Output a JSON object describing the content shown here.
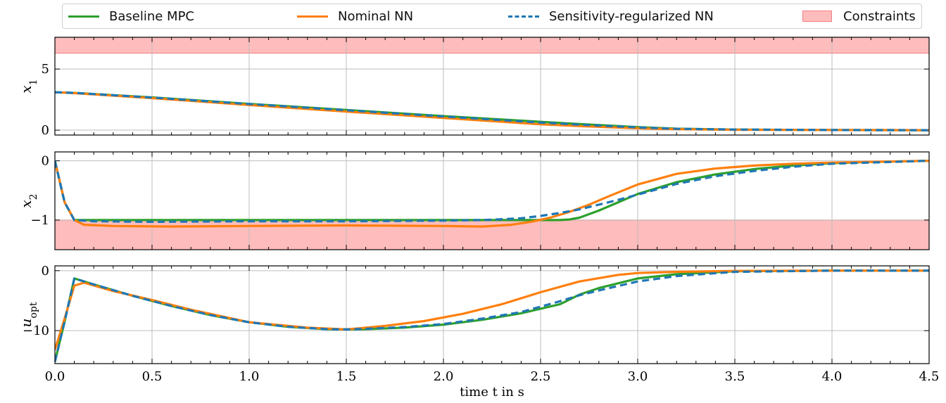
{
  "chart_data": {
    "type": "line",
    "xlabel": "time t in s",
    "xlim": [
      0.0,
      4.5
    ],
    "x_ticks": [
      "0.0",
      "0.5",
      "1.0",
      "1.5",
      "2.0",
      "2.5",
      "3.0",
      "3.5",
      "4.0",
      "4.5"
    ],
    "grid": true,
    "legend": {
      "placement": "top",
      "entries": [
        {
          "label": "Baseline MPC",
          "color": "#2ca02c",
          "style": "solid"
        },
        {
          "label": "Nominal NN",
          "color": "#ff7f0e",
          "style": "solid"
        },
        {
          "label": "Sensitivity-regularized NN",
          "color": "#1f77b4",
          "style": "dashed"
        },
        {
          "label": "Constraints",
          "color": "#ffb3b3",
          "style": "patch"
        }
      ]
    },
    "panels": [
      {
        "ylabel": "x1",
        "ylim": [
          -0.4,
          7.6
        ],
        "y_ticks": [
          0,
          5
        ],
        "constraint_band": [
          6.3,
          7.6
        ],
        "series": [
          {
            "name": "Baseline MPC",
            "x": [
              0,
              0.1,
              0.5,
              1.0,
              1.5,
              2.0,
              2.5,
              2.7,
              3.0,
              3.2,
              3.5,
              4.0,
              4.5
            ],
            "values": [
              3.1,
              3.05,
              2.68,
              2.15,
              1.65,
              1.15,
              0.68,
              0.5,
              0.25,
              0.12,
              0.05,
              0.01,
              0.0
            ]
          },
          {
            "name": "Nominal NN",
            "x": [
              0,
              0.1,
              0.5,
              1.0,
              1.5,
              2.0,
              2.5,
              2.7,
              3.0,
              3.2,
              3.5,
              4.0,
              4.5
            ],
            "values": [
              3.1,
              3.03,
              2.62,
              2.06,
              1.52,
              1.0,
              0.48,
              0.33,
              0.15,
              0.08,
              0.03,
              0.01,
              0.0
            ]
          },
          {
            "name": "Sensitivity-regularized NN",
            "x": [
              0,
              0.1,
              0.5,
              1.0,
              1.5,
              2.0,
              2.5,
              2.7,
              3.0,
              3.2,
              3.5,
              4.0,
              4.5
            ],
            "values": [
              3.1,
              3.05,
              2.67,
              2.14,
              1.63,
              1.12,
              0.62,
              0.45,
              0.22,
              0.11,
              0.05,
              0.01,
              0.0
            ]
          }
        ]
      },
      {
        "ylabel": "x2",
        "ylim": [
          -1.5,
          0.15
        ],
        "y_ticks": [
          0,
          -1
        ],
        "constraint_band": [
          -1.5,
          -1.0
        ],
        "series": [
          {
            "name": "Baseline MPC",
            "x": [
              0,
              0.05,
              0.1,
              0.2,
              0.5,
              1.0,
              1.5,
              2.0,
              2.5,
              2.6,
              2.65,
              2.7,
              2.8,
              2.9,
              3.0,
              3.2,
              3.4,
              3.6,
              3.8,
              4.0,
              4.2,
              4.5
            ],
            "values": [
              0,
              -0.7,
              -1.0,
              -1.0,
              -1.0,
              -1.0,
              -1.0,
              -1.0,
              -1.0,
              -1.0,
              -0.99,
              -0.96,
              -0.84,
              -0.7,
              -0.56,
              -0.36,
              -0.23,
              -0.14,
              -0.08,
              -0.04,
              -0.02,
              0.0
            ]
          },
          {
            "name": "Nominal NN",
            "x": [
              0,
              0.05,
              0.1,
              0.15,
              0.3,
              0.6,
              1.0,
              1.5,
              2.0,
              2.2,
              2.35,
              2.45,
              2.55,
              2.65,
              2.75,
              2.85,
              3.0,
              3.2,
              3.4,
              3.6,
              3.8,
              4.0,
              4.5
            ],
            "values": [
              0,
              -0.7,
              -1.0,
              -1.08,
              -1.1,
              -1.11,
              -1.1,
              -1.09,
              -1.1,
              -1.11,
              -1.08,
              -1.03,
              -0.96,
              -0.86,
              -0.74,
              -0.6,
              -0.4,
              -0.22,
              -0.13,
              -0.08,
              -0.05,
              -0.03,
              0.0
            ]
          },
          {
            "name": "Sensitivity-regularized NN",
            "x": [
              0,
              0.05,
              0.1,
              0.2,
              0.5,
              1.0,
              1.5,
              2.0,
              2.2,
              2.4,
              2.5,
              2.6,
              2.7,
              2.8,
              2.9,
              3.0,
              3.2,
              3.4,
              3.6,
              3.8,
              4.0,
              4.5
            ],
            "values": [
              0,
              -0.7,
              -1.0,
              -1.02,
              -1.03,
              -1.02,
              -1.02,
              -1.01,
              -1.0,
              -0.97,
              -0.93,
              -0.88,
              -0.82,
              -0.74,
              -0.66,
              -0.57,
              -0.39,
              -0.26,
              -0.17,
              -0.1,
              -0.05,
              0.0
            ]
          }
        ]
      },
      {
        "ylabel": "u_opt",
        "ylim": [
          -15.5,
          0.8
        ],
        "y_ticks": [
          0,
          -10
        ],
        "series": [
          {
            "name": "Baseline MPC",
            "x": [
              0,
              0.05,
              0.1,
              0.2,
              0.4,
              0.6,
              0.8,
              1.0,
              1.2,
              1.4,
              1.5,
              1.6,
              1.8,
              2.0,
              2.2,
              2.4,
              2.6,
              2.7,
              2.8,
              3.0,
              3.2,
              3.5,
              4.0,
              4.5
            ],
            "values": [
              -15.2,
              -8.5,
              -1.3,
              -2.3,
              -4.2,
              -5.9,
              -7.4,
              -8.6,
              -9.35,
              -9.75,
              -9.8,
              -9.75,
              -9.5,
              -9.0,
              -8.2,
              -7.1,
              -5.6,
              -4.0,
              -2.9,
              -1.3,
              -0.6,
              -0.1,
              0.0,
              0.0
            ]
          },
          {
            "name": "Nominal NN",
            "x": [
              0,
              0.05,
              0.1,
              0.15,
              0.3,
              0.5,
              0.7,
              1.0,
              1.3,
              1.5,
              1.7,
              1.9,
              2.1,
              2.3,
              2.5,
              2.7,
              2.9,
              3.0,
              3.2,
              3.5,
              4.0,
              4.5
            ],
            "values": [
              -13.2,
              -8.0,
              -2.5,
              -2.0,
              -3.4,
              -4.9,
              -6.5,
              -8.6,
              -9.5,
              -9.8,
              -9.2,
              -8.4,
              -7.2,
              -5.6,
              -3.6,
              -1.8,
              -0.7,
              -0.4,
              -0.2,
              -0.05,
              0.0,
              0.0
            ]
          },
          {
            "name": "Sensitivity-regularized NN",
            "x": [
              0,
              0.05,
              0.1,
              0.2,
              0.4,
              0.6,
              0.8,
              1.0,
              1.2,
              1.4,
              1.5,
              1.6,
              1.8,
              2.0,
              2.2,
              2.4,
              2.6,
              2.7,
              2.8,
              3.0,
              3.2,
              3.5,
              4.0,
              4.5
            ],
            "values": [
              -15.2,
              -8.5,
              -1.3,
              -2.3,
              -4.2,
              -5.9,
              -7.4,
              -8.6,
              -9.35,
              -9.75,
              -9.8,
              -9.7,
              -9.4,
              -8.9,
              -8.0,
              -6.9,
              -5.1,
              -4.1,
              -3.3,
              -1.8,
              -0.9,
              -0.2,
              0.0,
              0.0
            ]
          }
        ]
      }
    ]
  }
}
